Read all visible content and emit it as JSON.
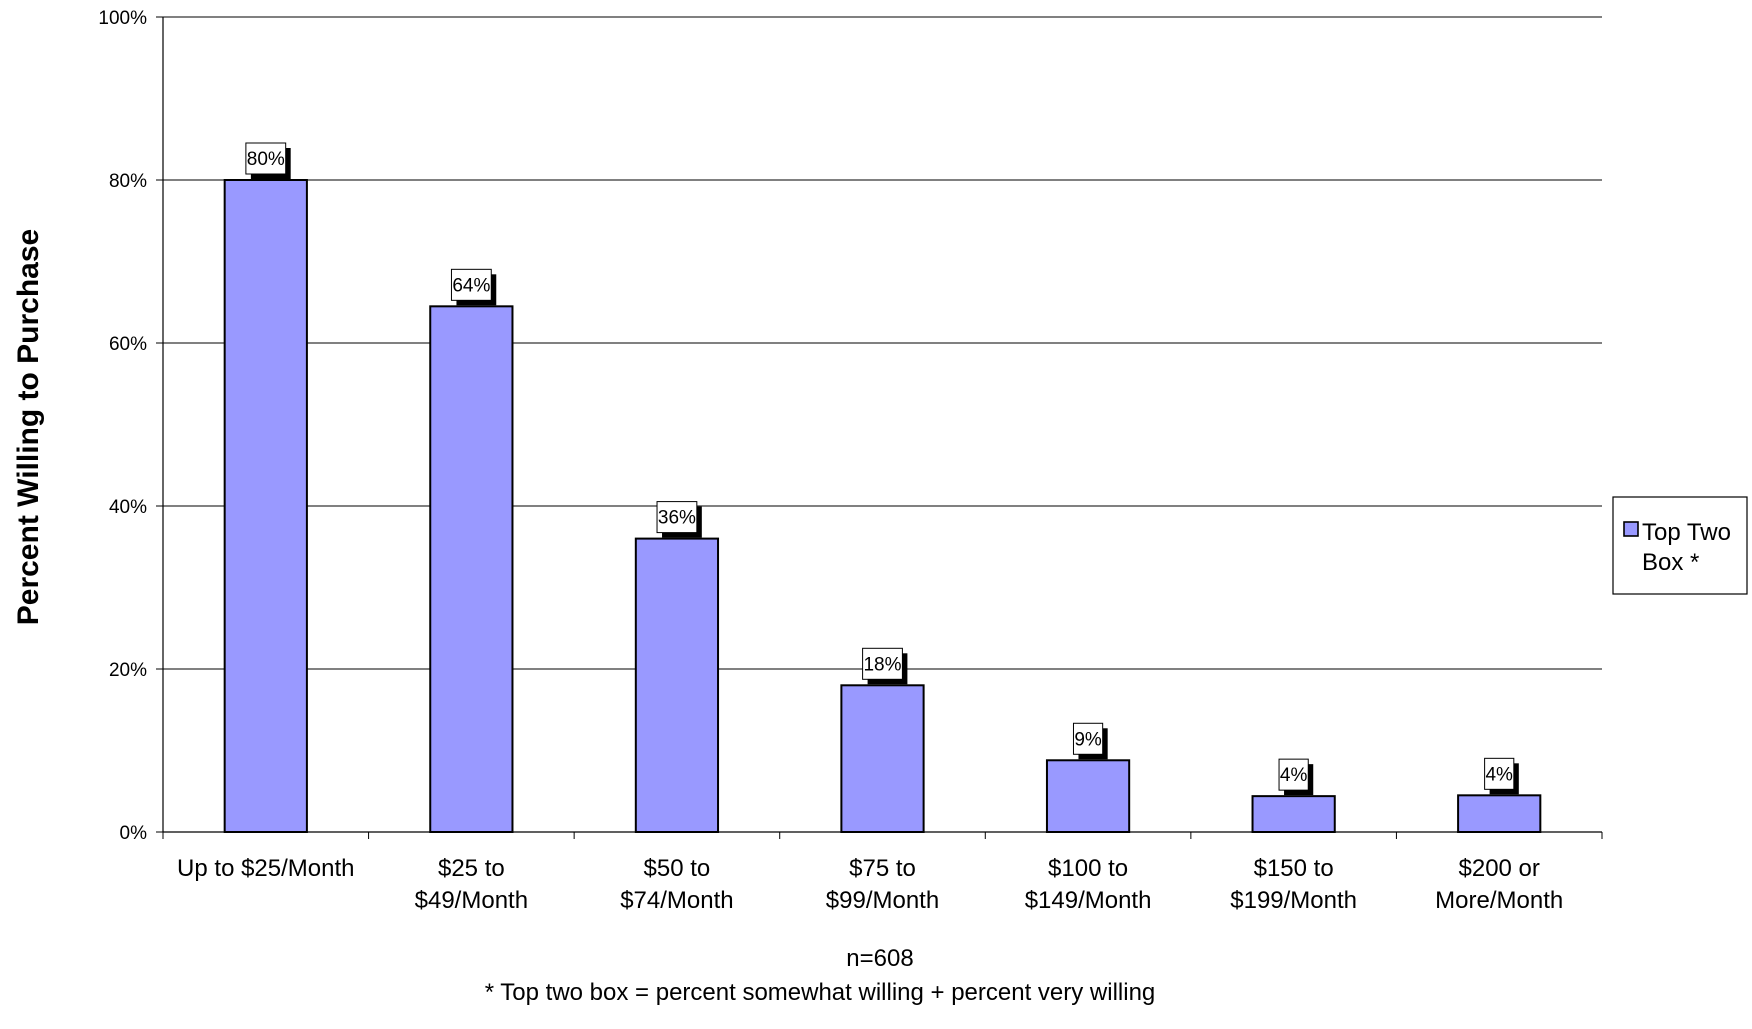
{
  "chart_data": {
    "type": "bar",
    "categories": [
      [
        "Up to $25/Month"
      ],
      [
        "$25 to",
        "$49/Month"
      ],
      [
        "$50 to",
        "$74/Month"
      ],
      [
        "$75 to",
        "$99/Month"
      ],
      [
        "$100 to",
        "$149/Month"
      ],
      [
        "$150 to",
        "$199/Month"
      ],
      [
        "$200 or",
        "More/Month"
      ]
    ],
    "series": [
      {
        "name": "Top Two Box *",
        "legend_lines": [
          "Top Two",
          "Box *"
        ],
        "values": [
          80,
          64.5,
          36,
          18,
          8.8,
          4.4,
          4.5
        ],
        "data_labels": [
          "80%",
          "64%",
          "36%",
          "18%",
          "9%",
          "4%",
          "4%"
        ],
        "color": "#9999ff"
      }
    ],
    "title": "",
    "xlabel": "",
    "ylabel": "Percent Willing to Purchase",
    "ylim": [
      0,
      100
    ],
    "yticks": [
      0,
      20,
      40,
      60,
      80,
      100
    ],
    "ytick_labels": [
      "0%",
      "20%",
      "40%",
      "60%",
      "80%",
      "100%"
    ],
    "grid": true,
    "legend_position": "right",
    "notes": [
      "n=608",
      "* Top two box = percent somewhat willing + percent very willing"
    ]
  }
}
